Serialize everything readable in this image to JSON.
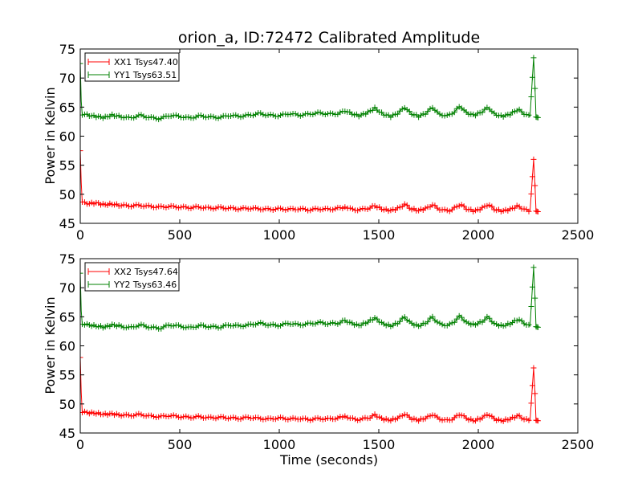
{
  "title": "orion_a, ID:72472 Calibrated Amplitude",
  "chart_data": [
    {
      "type": "line",
      "ylabel": "Power in Kelvin",
      "xlabel": "",
      "xlim": [
        0,
        2500
      ],
      "ylim": [
        45,
        75
      ],
      "x_ticks": [
        "0",
        "500",
        "1000",
        "1500",
        "2000",
        "2500"
      ],
      "y_ticks": [
        "45",
        "50",
        "55",
        "60",
        "65",
        "70",
        "75"
      ],
      "legend_position": "top-left",
      "series": [
        {
          "name": "XX1 Tsys47.40",
          "color": "#ff0000",
          "marker": "plus",
          "points": [
            [
              0,
              57.5
            ],
            [
              5,
              52
            ],
            [
              10,
              48.6
            ],
            [
              40,
              48.4
            ],
            [
              80,
              48.5
            ],
            [
              120,
              48.2
            ],
            [
              160,
              48.3
            ],
            [
              200,
              48.1
            ],
            [
              250,
              48.0
            ],
            [
              300,
              48.1
            ],
            [
              350,
              47.9
            ],
            [
              400,
              47.8
            ],
            [
              450,
              47.9
            ],
            [
              500,
              47.8
            ],
            [
              550,
              47.7
            ],
            [
              600,
              47.8
            ],
            [
              650,
              47.6
            ],
            [
              700,
              47.7
            ],
            [
              750,
              47.6
            ],
            [
              800,
              47.5
            ],
            [
              850,
              47.6
            ],
            [
              900,
              47.5
            ],
            [
              950,
              47.4
            ],
            [
              1000,
              47.5
            ],
            [
              1050,
              47.4
            ],
            [
              1100,
              47.5
            ],
            [
              1150,
              47.3
            ],
            [
              1200,
              47.5
            ],
            [
              1250,
              47.4
            ],
            [
              1300,
              47.6
            ],
            [
              1330,
              47.8
            ],
            [
              1350,
              47.5
            ],
            [
              1400,
              47.3
            ],
            [
              1450,
              47.6
            ],
            [
              1480,
              48.0
            ],
            [
              1520,
              47.4
            ],
            [
              1560,
              47.2
            ],
            [
              1600,
              47.6
            ],
            [
              1630,
              48.3
            ],
            [
              1660,
              47.5
            ],
            [
              1700,
              47.2
            ],
            [
              1740,
              47.6
            ],
            [
              1770,
              48.2
            ],
            [
              1800,
              47.5
            ],
            [
              1850,
              47.1
            ],
            [
              1880,
              47.6
            ],
            [
              1910,
              48.3
            ],
            [
              1940,
              47.5
            ],
            [
              1980,
              47.1
            ],
            [
              2020,
              47.6
            ],
            [
              2050,
              48.3
            ],
            [
              2080,
              47.4
            ],
            [
              2120,
              47.1
            ],
            [
              2160,
              47.4
            ],
            [
              2200,
              48.0
            ],
            [
              2230,
              47.4
            ],
            [
              2260,
              47.1
            ],
            [
              2278,
              56.0
            ],
            [
              2285,
              51.5
            ],
            [
              2290,
              47.1
            ],
            [
              2300,
              47.0
            ]
          ]
        },
        {
          "name": "YY1 Tsys63.51",
          "color": "#008000",
          "marker": "plus",
          "points": [
            [
              0,
              72.5
            ],
            [
              5,
              66
            ],
            [
              10,
              63.8
            ],
            [
              40,
              63.6
            ],
            [
              80,
              63.4
            ],
            [
              120,
              63.2
            ],
            [
              160,
              63.6
            ],
            [
              200,
              63.4
            ],
            [
              250,
              63.1
            ],
            [
              300,
              63.6
            ],
            [
              350,
              63.2
            ],
            [
              400,
              63.0
            ],
            [
              450,
              63.6
            ],
            [
              500,
              63.4
            ],
            [
              550,
              63.1
            ],
            [
              600,
              63.5
            ],
            [
              650,
              63.3
            ],
            [
              700,
              63.2
            ],
            [
              750,
              63.6
            ],
            [
              800,
              63.4
            ],
            [
              850,
              63.6
            ],
            [
              900,
              63.9
            ],
            [
              950,
              63.6
            ],
            [
              1000,
              63.5
            ],
            [
              1050,
              63.9
            ],
            [
              1100,
              63.6
            ],
            [
              1150,
              63.8
            ],
            [
              1200,
              64.0
            ],
            [
              1250,
              63.8
            ],
            [
              1300,
              63.9
            ],
            [
              1330,
              64.4
            ],
            [
              1360,
              63.9
            ],
            [
              1400,
              63.5
            ],
            [
              1440,
              64.0
            ],
            [
              1480,
              64.8
            ],
            [
              1520,
              63.8
            ],
            [
              1560,
              63.4
            ],
            [
              1600,
              64.0
            ],
            [
              1630,
              65.0
            ],
            [
              1660,
              63.9
            ],
            [
              1700,
              63.4
            ],
            [
              1740,
              64.0
            ],
            [
              1770,
              65.0
            ],
            [
              1800,
              63.8
            ],
            [
              1850,
              63.5
            ],
            [
              1880,
              64.2
            ],
            [
              1910,
              65.2
            ],
            [
              1940,
              64.0
            ],
            [
              1980,
              63.6
            ],
            [
              2020,
              64.2
            ],
            [
              2050,
              65.0
            ],
            [
              2080,
              63.8
            ],
            [
              2120,
              63.4
            ],
            [
              2160,
              63.8
            ],
            [
              2200,
              64.6
            ],
            [
              2230,
              63.9
            ],
            [
              2260,
              63.4
            ],
            [
              2278,
              73.5
            ],
            [
              2285,
              68.2
            ],
            [
              2290,
              63.3
            ],
            [
              2300,
              63.2
            ]
          ]
        }
      ]
    },
    {
      "type": "line",
      "ylabel": "Power in Kelvin",
      "xlabel": "Time (seconds)",
      "xlim": [
        0,
        2500
      ],
      "ylim": [
        45,
        75
      ],
      "x_ticks": [
        "0",
        "500",
        "1000",
        "1500",
        "2000",
        "2500"
      ],
      "y_ticks": [
        "45",
        "50",
        "55",
        "60",
        "65",
        "70",
        "75"
      ],
      "legend_position": "top-left",
      "series": [
        {
          "name": "XX2 Tsys47.64",
          "color": "#ff0000",
          "marker": "plus",
          "points": [
            [
              0,
              58
            ],
            [
              5,
              52
            ],
            [
              10,
              48.6
            ],
            [
              40,
              48.5
            ],
            [
              80,
              48.4
            ],
            [
              120,
              48.2
            ],
            [
              160,
              48.3
            ],
            [
              200,
              48.1
            ],
            [
              250,
              48.0
            ],
            [
              300,
              48.2
            ],
            [
              350,
              47.9
            ],
            [
              400,
              47.8
            ],
            [
              450,
              48.0
            ],
            [
              500,
              47.8
            ],
            [
              550,
              47.7
            ],
            [
              600,
              47.8
            ],
            [
              650,
              47.6
            ],
            [
              700,
              47.7
            ],
            [
              750,
              47.6
            ],
            [
              800,
              47.5
            ],
            [
              850,
              47.7
            ],
            [
              900,
              47.5
            ],
            [
              950,
              47.4
            ],
            [
              1000,
              47.6
            ],
            [
              1050,
              47.4
            ],
            [
              1100,
              47.5
            ],
            [
              1150,
              47.3
            ],
            [
              1200,
              47.5
            ],
            [
              1250,
              47.4
            ],
            [
              1300,
              47.6
            ],
            [
              1330,
              47.9
            ],
            [
              1350,
              47.5
            ],
            [
              1400,
              47.3
            ],
            [
              1450,
              47.6
            ],
            [
              1480,
              48.1
            ],
            [
              1520,
              47.4
            ],
            [
              1560,
              47.2
            ],
            [
              1600,
              47.6
            ],
            [
              1630,
              48.3
            ],
            [
              1660,
              47.5
            ],
            [
              1700,
              47.2
            ],
            [
              1740,
              47.6
            ],
            [
              1770,
              48.2
            ],
            [
              1800,
              47.5
            ],
            [
              1850,
              47.1
            ],
            [
              1880,
              47.6
            ],
            [
              1910,
              48.3
            ],
            [
              1940,
              47.5
            ],
            [
              1980,
              47.1
            ],
            [
              2020,
              47.6
            ],
            [
              2050,
              48.3
            ],
            [
              2080,
              47.4
            ],
            [
              2120,
              47.1
            ],
            [
              2160,
              47.4
            ],
            [
              2200,
              48.0
            ],
            [
              2230,
              47.4
            ],
            [
              2260,
              47.1
            ],
            [
              2278,
              56.2
            ],
            [
              2285,
              51.8
            ],
            [
              2290,
              47.2
            ],
            [
              2300,
              47.1
            ]
          ]
        },
        {
          "name": "YY2 Tsys63.46",
          "color": "#008000",
          "marker": "plus",
          "points": [
            [
              0,
              72.5
            ],
            [
              5,
              66
            ],
            [
              10,
              63.8
            ],
            [
              40,
              63.6
            ],
            [
              80,
              63.4
            ],
            [
              120,
              63.2
            ],
            [
              160,
              63.6
            ],
            [
              200,
              63.4
            ],
            [
              250,
              63.1
            ],
            [
              300,
              63.6
            ],
            [
              350,
              63.2
            ],
            [
              400,
              63.0
            ],
            [
              450,
              63.6
            ],
            [
              500,
              63.4
            ],
            [
              550,
              63.1
            ],
            [
              600,
              63.5
            ],
            [
              650,
              63.3
            ],
            [
              700,
              63.2
            ],
            [
              750,
              63.6
            ],
            [
              800,
              63.4
            ],
            [
              850,
              63.6
            ],
            [
              900,
              63.9
            ],
            [
              950,
              63.6
            ],
            [
              1000,
              63.5
            ],
            [
              1050,
              63.9
            ],
            [
              1100,
              63.6
            ],
            [
              1150,
              63.8
            ],
            [
              1200,
              64.0
            ],
            [
              1250,
              63.8
            ],
            [
              1300,
              63.9
            ],
            [
              1330,
              64.4
            ],
            [
              1360,
              63.9
            ],
            [
              1400,
              63.5
            ],
            [
              1440,
              64.0
            ],
            [
              1480,
              64.8
            ],
            [
              1520,
              63.8
            ],
            [
              1560,
              63.4
            ],
            [
              1600,
              64.0
            ],
            [
              1630,
              65.0
            ],
            [
              1660,
              63.9
            ],
            [
              1700,
              63.4
            ],
            [
              1740,
              64.0
            ],
            [
              1770,
              65.0
            ],
            [
              1800,
              63.8
            ],
            [
              1850,
              63.5
            ],
            [
              1880,
              64.2
            ],
            [
              1910,
              65.2
            ],
            [
              1940,
              64.0
            ],
            [
              1980,
              63.6
            ],
            [
              2020,
              64.2
            ],
            [
              2050,
              65.0
            ],
            [
              2080,
              63.8
            ],
            [
              2120,
              63.4
            ],
            [
              2160,
              63.8
            ],
            [
              2200,
              64.6
            ],
            [
              2230,
              63.9
            ],
            [
              2260,
              63.4
            ],
            [
              2278,
              73.5
            ],
            [
              2285,
              68.2
            ],
            [
              2290,
              63.3
            ],
            [
              2300,
              63.2
            ]
          ]
        }
      ]
    }
  ]
}
